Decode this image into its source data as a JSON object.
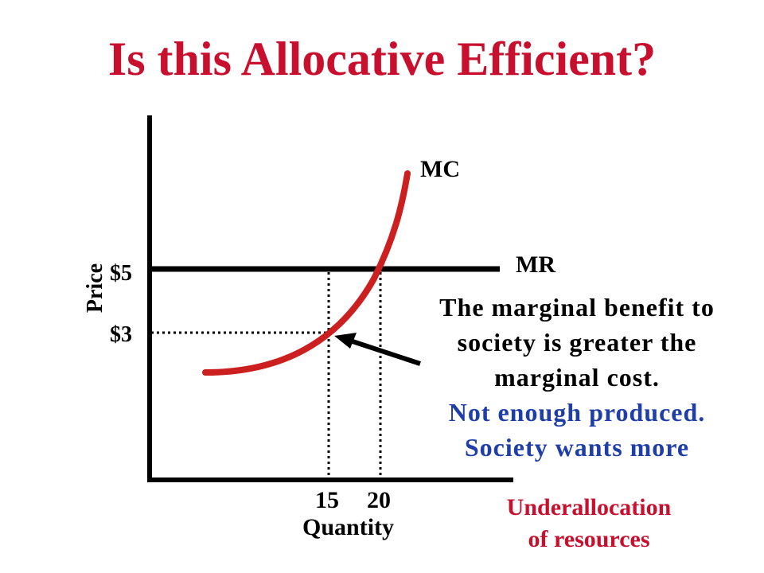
{
  "title": "Is this Allocative Efficient?",
  "labels": {
    "mc": "MC",
    "mr": "MR",
    "y_axis": "Price",
    "x_axis": "Quantity",
    "price_high": "$5",
    "price_low": "$3",
    "qty_low": "15",
    "qty_high": "20"
  },
  "note": {
    "line1": "The marginal benefit to",
    "line2": "society is greater the",
    "line3": "marginal cost.",
    "line4": "Not enough produced.",
    "line5": "Society wants more"
  },
  "conclusion": {
    "line1": "Underallocation",
    "line2": "of resources"
  },
  "colors": {
    "title": "#c8102e",
    "mc_curve": "#cc1f1f",
    "emphasis_text": "#1f3ea8",
    "conclusion_text": "#c8102e"
  }
}
